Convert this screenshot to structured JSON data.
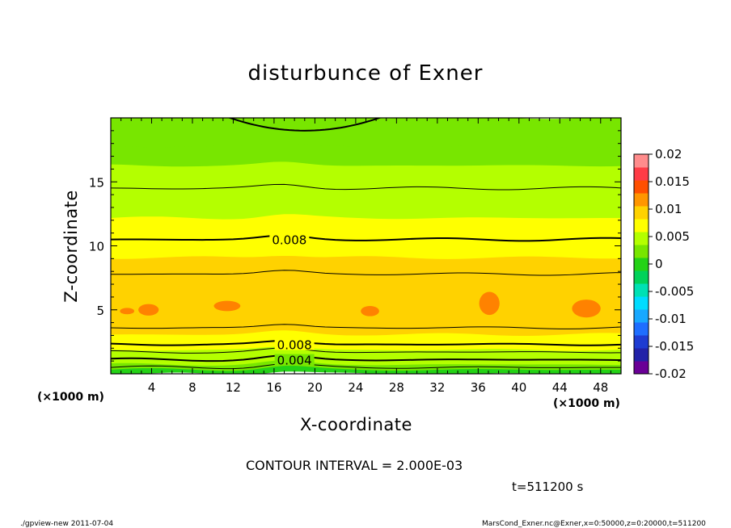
{
  "chart_data": {
    "type": "heatmap",
    "title": "disturbunce of Exner",
    "xlabel": "X-coordinate",
    "ylabel": "Z-coordinate",
    "x_unit": "(×1000 m)",
    "x_ticks": [
      4,
      8,
      12,
      16,
      20,
      24,
      28,
      32,
      36,
      40,
      44,
      48
    ],
    "y_ticks": [
      5,
      10,
      15
    ],
    "xlim": [
      0,
      50
    ],
    "ylim": [
      0,
      20
    ],
    "colorbar": {
      "ticks": [
        "0.02",
        "0.015",
        "0.01",
        "0.005",
        "0",
        "-0.005",
        "-0.01",
        "-0.015",
        "-0.02"
      ],
      "levels": [
        -0.02,
        -0.0175,
        -0.015,
        -0.0125,
        -0.01,
        -0.0075,
        -0.005,
        -0.0025,
        0,
        0.0025,
        0.005,
        0.0075,
        0.01,
        0.0125,
        0.015,
        0.0175,
        0.02
      ],
      "colors": [
        "#6a0096",
        "#2222a8",
        "#1e3cd2",
        "#1e6eff",
        "#18a8ff",
        "#00dcff",
        "#00e1b4",
        "#00d25a",
        "#24d216",
        "#78e600",
        "#b4ff00",
        "#ffff00",
        "#ffd200",
        "#ff9600",
        "#ff5000",
        "#ff3c46",
        "#ff8c8c"
      ],
      "range": [
        -0.02,
        0.02
      ]
    },
    "bands": [
      {
        "z_bottom": 0.0,
        "z_top": 0.35,
        "value": 0.001
      },
      {
        "z_bottom": 0.35,
        "z_top": 0.75,
        "value": 0.003
      },
      {
        "z_bottom": 0.75,
        "z_top": 1.3,
        "value": 0.005
      },
      {
        "z_bottom": 1.3,
        "z_top": 1.9,
        "value": 0.006
      },
      {
        "z_bottom": 1.9,
        "z_top": 2.5,
        "value": 0.0075
      },
      {
        "z_bottom": 2.5,
        "z_top": 3.1,
        "value": 0.009
      },
      {
        "z_bottom": 3.1,
        "z_top": 3.6,
        "value": 0.0105
      },
      {
        "z_bottom": 3.6,
        "z_top": 7.8,
        "value": 0.0115
      },
      {
        "z_bottom": 7.8,
        "z_top": 9.1,
        "value": 0.0105
      },
      {
        "z_bottom": 9.1,
        "z_top": 10.6,
        "value": 0.009
      },
      {
        "z_bottom": 10.6,
        "z_top": 12.2,
        "value": 0.0075
      },
      {
        "z_bottom": 12.2,
        "z_top": 14.5,
        "value": 0.006
      },
      {
        "z_bottom": 14.5,
        "z_top": 16.3,
        "value": 0.005
      },
      {
        "z_bottom": 16.3,
        "z_top": 17.8,
        "value": 0.004
      },
      {
        "z_bottom": 17.8,
        "z_top": 20.0,
        "value": 0.003
      }
    ],
    "contours": [
      {
        "z": 0.5,
        "value": 0.002,
        "label": ""
      },
      {
        "z": 1.1,
        "value": 0.004,
        "label": "0.004"
      },
      {
        "z": 1.7,
        "value": 0.006,
        "label": ""
      },
      {
        "z": 2.3,
        "value": 0.008,
        "label": "0.008"
      },
      {
        "z": 3.6,
        "value": 0.01,
        "label": ""
      },
      {
        "z": 7.8,
        "value": 0.01,
        "label": ""
      },
      {
        "z": 10.5,
        "value": 0.008,
        "label": "0.008"
      },
      {
        "z": 14.5,
        "value": 0.006,
        "label": ""
      },
      {
        "z": 19.0,
        "value": 0.004,
        "label": ""
      }
    ],
    "contour_interval": "CONTOUR INTERVAL = 2.000E-03",
    "time": "t=511200 s"
  },
  "footer": {
    "left": "./gpview-new  2011-07-04",
    "right": "MarsCond_Exner.nc@Exner,x=0:50000,z=0:20000,t=511200"
  }
}
